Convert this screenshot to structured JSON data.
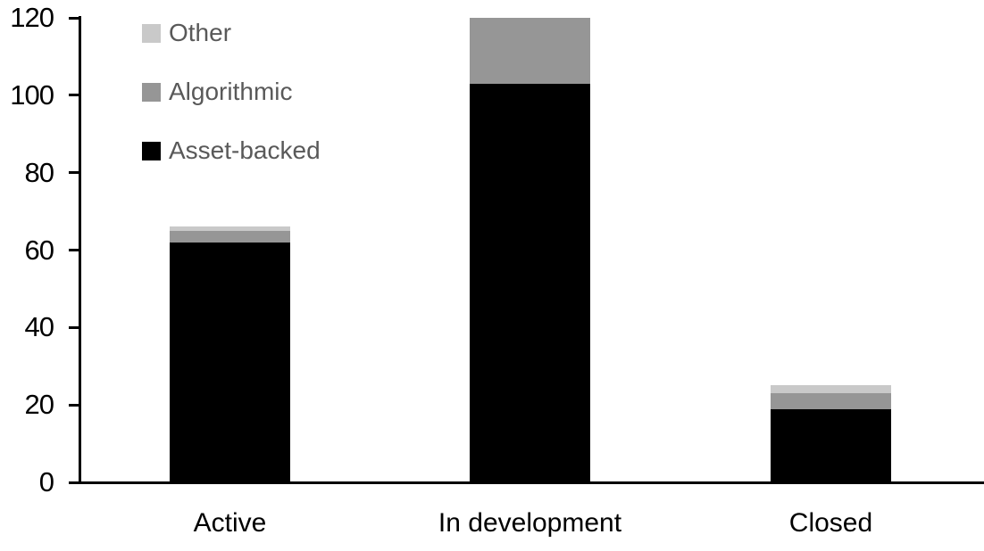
{
  "chart_data": {
    "type": "bar",
    "stacked": true,
    "title": "",
    "xlabel": "",
    "ylabel": "",
    "categories": [
      "Active",
      "In development",
      "Closed"
    ],
    "series": [
      {
        "name": "Asset-backed",
        "color": "#000000",
        "values": [
          62,
          103,
          19
        ]
      },
      {
        "name": "Algorithmic",
        "color": "#969696",
        "values": [
          3,
          17,
          4
        ]
      },
      {
        "name": "Other",
        "color": "#c9c9c9",
        "values": [
          1,
          0,
          2
        ]
      }
    ],
    "ylim": [
      0,
      120
    ],
    "yticks": [
      0,
      20,
      40,
      60,
      80,
      100,
      120
    ],
    "grid": false,
    "legend_position": "top-left",
    "legend_order": [
      "Other",
      "Algorithmic",
      "Asset-backed"
    ]
  },
  "styles": {
    "background": "#ffffff",
    "axis_color": "#000000",
    "axis_label_color": "#000000",
    "legend_text_color": "#595959"
  }
}
